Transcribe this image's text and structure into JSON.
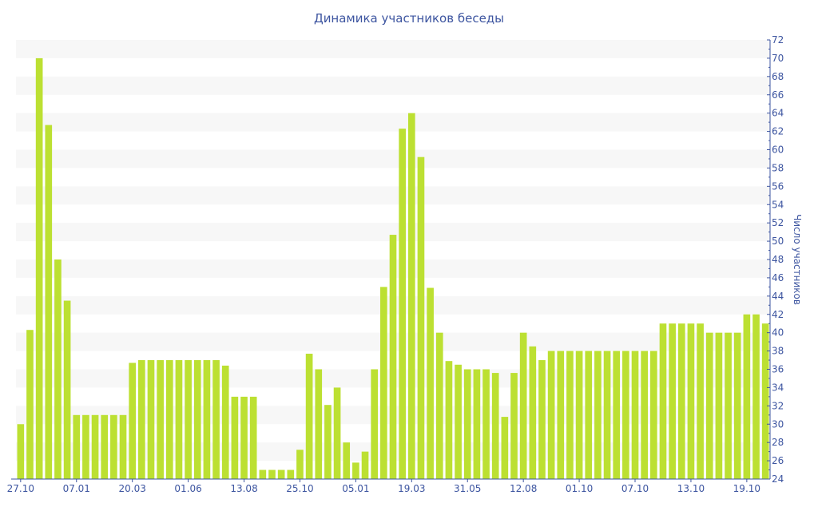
{
  "chart_data": {
    "type": "bar",
    "title": "Динамика участников беседы",
    "ylabel": "Число участников",
    "xlabel": "",
    "ylim": [
      24,
      72
    ],
    "y_ticks": [
      24,
      26,
      28,
      30,
      32,
      34,
      36,
      38,
      40,
      42,
      44,
      46,
      48,
      50,
      52,
      54,
      56,
      58,
      60,
      62,
      64,
      66,
      68,
      70,
      72
    ],
    "y_axis_side": "right",
    "grid": "alternating horizontal bands",
    "x_tick_labels": [
      "27.10",
      "07.01",
      "20.03",
      "01.06",
      "13.08",
      "25.10",
      "05.01",
      "19.03",
      "31.05",
      "12.08",
      "01.10",
      "07.10",
      "13.10",
      "19.10"
    ],
    "x_tick_every": 6,
    "values": [
      30,
      40.3,
      70,
      62.7,
      48,
      43.5,
      31,
      31,
      31,
      31,
      31,
      31,
      36.7,
      37,
      37,
      37,
      37,
      37,
      37,
      37,
      37,
      37,
      36.4,
      33,
      33,
      33,
      25,
      25,
      25,
      25,
      27.2,
      37.7,
      36,
      32.1,
      34,
      28,
      25.8,
      27,
      36,
      45,
      50.7,
      62.3,
      64,
      59.2,
      44.9,
      40,
      36.9,
      36.5,
      36,
      36,
      36,
      35.6,
      30.8,
      35.6,
      40,
      38.5,
      37,
      38,
      38,
      38,
      38,
      38,
      38,
      38,
      38,
      38,
      38,
      38,
      38,
      41,
      41,
      41,
      41,
      41,
      40,
      40,
      40,
      40,
      42,
      42,
      41
    ],
    "colors": {
      "bar": "#bce032",
      "axis": "#3d55a0",
      "band": "#f7f7f7"
    }
  }
}
